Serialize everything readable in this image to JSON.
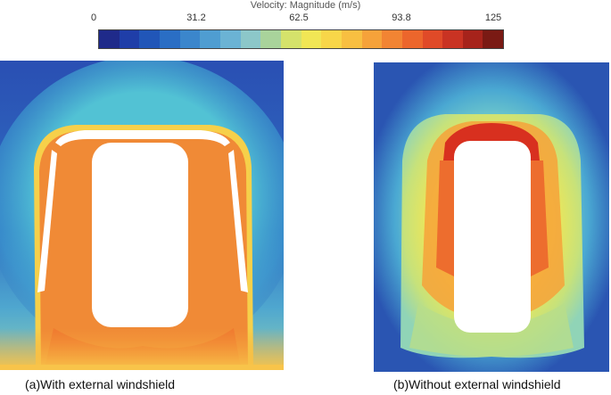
{
  "colorbar": {
    "title": "Velocity: Magnitude (m/s)",
    "ticks": [
      "0",
      "31.2",
      "62.5",
      "93.8",
      "125"
    ],
    "colors": [
      "#1f2a8a",
      "#1f3ea8",
      "#2156b8",
      "#2a6ec4",
      "#3b86cc",
      "#4f9dd1",
      "#6bb3d4",
      "#8cc7c9",
      "#a9d39b",
      "#d5e26b",
      "#f1e655",
      "#f8d649",
      "#f8bf41",
      "#f6a23a",
      "#f28433",
      "#ec662c",
      "#e04a28",
      "#c93323",
      "#a6231b",
      "#7a1a14"
    ]
  },
  "captions": {
    "left": "(a)With external windshield",
    "right": "(b)Without external windshield"
  }
}
